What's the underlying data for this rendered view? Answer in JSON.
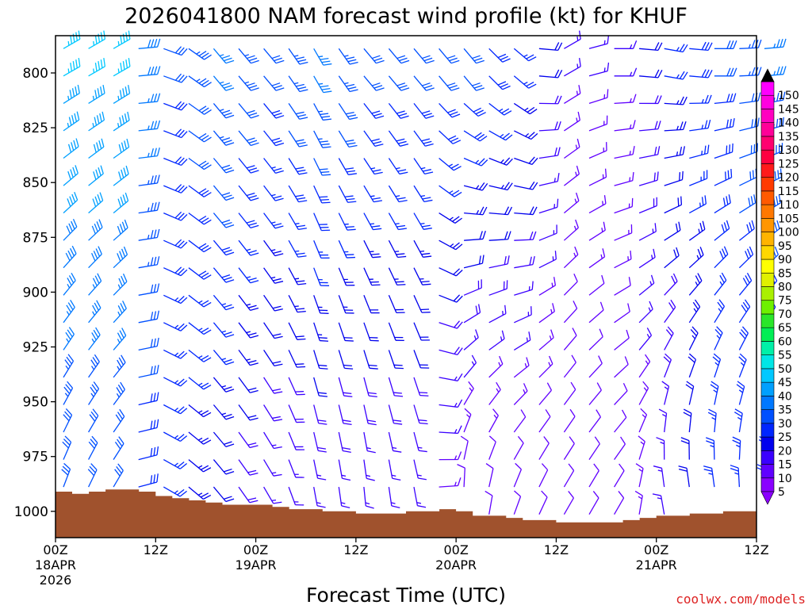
{
  "chart_data": {
    "type": "wind-barb-profile",
    "title": "2026041800 NAM forecast wind profile (kt) for KHUF",
    "xlabel": "Forecast Time (UTC)",
    "credit": "coolwx.com/models",
    "x_hours_range": [
      0,
      84
    ],
    "x_ticks": [
      {
        "hour": 0,
        "label": "00Z",
        "date": "18APR",
        "year": "2026"
      },
      {
        "hour": 12,
        "label": "12Z",
        "date": "",
        "year": ""
      },
      {
        "hour": 24,
        "label": "00Z",
        "date": "19APR",
        "year": ""
      },
      {
        "hour": 36,
        "label": "12Z",
        "date": "",
        "year": ""
      },
      {
        "hour": 48,
        "label": "00Z",
        "date": "20APR",
        "year": ""
      },
      {
        "hour": 60,
        "label": "12Z",
        "date": "",
        "year": ""
      },
      {
        "hour": 72,
        "label": "00Z",
        "date": "21APR",
        "year": ""
      },
      {
        "hour": 84,
        "label": "12Z",
        "date": "",
        "year": ""
      }
    ],
    "y_range_hpa": [
      783,
      1012
    ],
    "y_ticks": [
      "800",
      "825",
      "850",
      "875",
      "900",
      "925",
      "950",
      "975",
      "1000"
    ],
    "colorbar_levels": [
      "5",
      "10",
      "15",
      "20",
      "25",
      "30",
      "35",
      "40",
      "45",
      "50",
      "55",
      "60",
      "65",
      "70",
      "75",
      "80",
      "85",
      "90",
      "95",
      "100",
      "105",
      "110",
      "115",
      "120",
      "125",
      "130",
      "135",
      "140",
      "145",
      "150"
    ],
    "colorbar_colors": [
      "#8a00ff",
      "#6000ff",
      "#3a00ff",
      "#0000ee",
      "#0026ff",
      "#0050ff",
      "#0078ff",
      "#00a0ff",
      "#00c8ff",
      "#00e6e6",
      "#00f0a8",
      "#00ee55",
      "#2ae62a",
      "#6ef000",
      "#aaf000",
      "#e0f000",
      "#ffff00",
      "#ffd800",
      "#ffb400",
      "#ff9600",
      "#ff7800",
      "#ff5a00",
      "#ff3a00",
      "#ff1a1a",
      "#ff0040",
      "#ff0070",
      "#ff0098",
      "#ff00c0",
      "#ff00e0",
      "#ff00ff"
    ],
    "terrain_color": "#a0522d",
    "surface_pressure_hpa": [
      [
        0,
        991
      ],
      [
        2,
        992
      ],
      [
        4,
        991
      ],
      [
        6,
        990
      ],
      [
        8,
        990
      ],
      [
        10,
        991
      ],
      [
        12,
        993
      ],
      [
        14,
        994
      ],
      [
        16,
        995
      ],
      [
        18,
        996
      ],
      [
        20,
        997
      ],
      [
        22,
        997
      ],
      [
        24,
        997
      ],
      [
        26,
        998
      ],
      [
        28,
        999
      ],
      [
        30,
        999
      ],
      [
        32,
        1000
      ],
      [
        34,
        1000
      ],
      [
        36,
        1001
      ],
      [
        38,
        1001
      ],
      [
        40,
        1001
      ],
      [
        42,
        1000
      ],
      [
        44,
        1000
      ],
      [
        46,
        999
      ],
      [
        48,
        1000
      ],
      [
        50,
        1002
      ],
      [
        52,
        1002
      ],
      [
        54,
        1003
      ],
      [
        56,
        1004
      ],
      [
        58,
        1004
      ],
      [
        60,
        1005
      ],
      [
        62,
        1005
      ],
      [
        64,
        1005
      ],
      [
        66,
        1005
      ],
      [
        68,
        1004
      ],
      [
        70,
        1003
      ],
      [
        72,
        1002
      ],
      [
        74,
        1002
      ],
      [
        76,
        1001
      ],
      [
        78,
        1001
      ],
      [
        80,
        1000
      ],
      [
        82,
        1000
      ],
      [
        84,
        1000
      ]
    ],
    "wind_samples": [
      {
        "hour": 0,
        "low": {
          "speed": 30,
          "dir": 200
        },
        "high": {
          "speed": 45,
          "dir": 240
        }
      },
      {
        "hour": 6,
        "low": {
          "speed": 30,
          "dir": 210
        },
        "high": {
          "speed": 45,
          "dir": 240
        }
      },
      {
        "hour": 12,
        "low": {
          "speed": 25,
          "dir": 300
        },
        "high": {
          "speed": 30,
          "dir": 290
        }
      },
      {
        "hour": 18,
        "low": {
          "speed": 20,
          "dir": 320
        },
        "high": {
          "speed": 35,
          "dir": 320
        }
      },
      {
        "hour": 24,
        "low": {
          "speed": 15,
          "dir": 330
        },
        "high": {
          "speed": 30,
          "dir": 320
        }
      },
      {
        "hour": 30,
        "low": {
          "speed": 15,
          "dir": 350
        },
        "high": {
          "speed": 35,
          "dir": 330
        }
      },
      {
        "hour": 36,
        "low": {
          "speed": 15,
          "dir": 355
        },
        "high": {
          "speed": 30,
          "dir": 320
        }
      },
      {
        "hour": 42,
        "low": {
          "speed": 15,
          "dir": 350
        },
        "high": {
          "speed": 30,
          "dir": 320
        }
      },
      {
        "hour": 48,
        "low": {
          "speed": 10,
          "dir": 180
        },
        "high": {
          "speed": 30,
          "dir": 320
        }
      },
      {
        "hour": 54,
        "low": {
          "speed": 10,
          "dir": 200
        },
        "high": {
          "speed": 25,
          "dir": 310
        }
      },
      {
        "hour": 60,
        "low": {
          "speed": 10,
          "dir": 210
        },
        "high": {
          "speed": 15,
          "dir": 240
        }
      },
      {
        "hour": 66,
        "low": {
          "speed": 10,
          "dir": 210
        },
        "high": {
          "speed": 15,
          "dir": 270
        }
      },
      {
        "hour": 72,
        "low": {
          "speed": 15,
          "dir": 170
        },
        "high": {
          "speed": 25,
          "dir": 280
        }
      },
      {
        "hour": 78,
        "low": {
          "speed": 25,
          "dir": 170
        },
        "high": {
          "speed": 30,
          "dir": 270
        }
      },
      {
        "hour": 84,
        "low": {
          "speed": 25,
          "dir": 180
        },
        "high": {
          "speed": 35,
          "dir": 265
        }
      }
    ]
  }
}
